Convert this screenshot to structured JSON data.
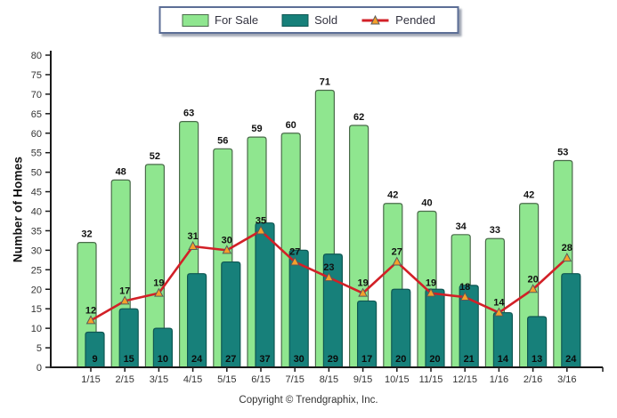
{
  "legend": {
    "items": [
      {
        "label": "For Sale",
        "swatch_color": "#8fe68f",
        "swatch_border": "#4a6b4a"
      },
      {
        "label": "Sold",
        "swatch_color": "#17807a",
        "swatch_border": "#0f5753"
      },
      {
        "label": "Pended",
        "line_color": "#d22027",
        "marker_color": "#f5a02b",
        "marker_border": "#5a5a5a"
      }
    ]
  },
  "y_axis": {
    "title": "Number of Homes",
    "min": 0,
    "max": 80,
    "step": 5
  },
  "footer": {
    "copyright": "Copyright © Trendgraphix, Inc."
  },
  "chart_data": {
    "type": "bar",
    "categories": [
      "1/15",
      "2/15",
      "3/15",
      "4/15",
      "5/15",
      "6/15",
      "7/15",
      "8/15",
      "9/15",
      "10/15",
      "11/15",
      "12/15",
      "1/16",
      "2/16",
      "3/16"
    ],
    "series": [
      {
        "name": "For Sale",
        "type": "bar",
        "color": "#8fe68f",
        "border": "#4a6b4a",
        "values": [
          32,
          48,
          52,
          63,
          56,
          59,
          60,
          71,
          62,
          42,
          40,
          34,
          33,
          42,
          53
        ]
      },
      {
        "name": "Sold",
        "type": "bar",
        "color": "#17807a",
        "border": "#0f5753",
        "values": [
          9,
          15,
          10,
          24,
          27,
          37,
          30,
          29,
          17,
          20,
          20,
          21,
          14,
          13,
          24
        ]
      },
      {
        "name": "Pended",
        "type": "line",
        "color": "#d22027",
        "marker": {
          "shape": "triangle",
          "color": "#f5a02b",
          "border": "#5a5a5a"
        },
        "values": [
          12,
          17,
          19,
          31,
          30,
          35,
          27,
          23,
          19,
          27,
          19,
          18,
          14,
          20,
          28
        ]
      }
    ],
    "title": "",
    "xlabel": "",
    "ylabel": "Number of Homes",
    "ylim": [
      0,
      80
    ],
    "ytick_step": 5,
    "legend_position": "top-center",
    "grid": false,
    "value_labels": true,
    "axis_color": "#1a1a1a",
    "tick_label_color": "#333333",
    "value_label_color": "#111111"
  }
}
